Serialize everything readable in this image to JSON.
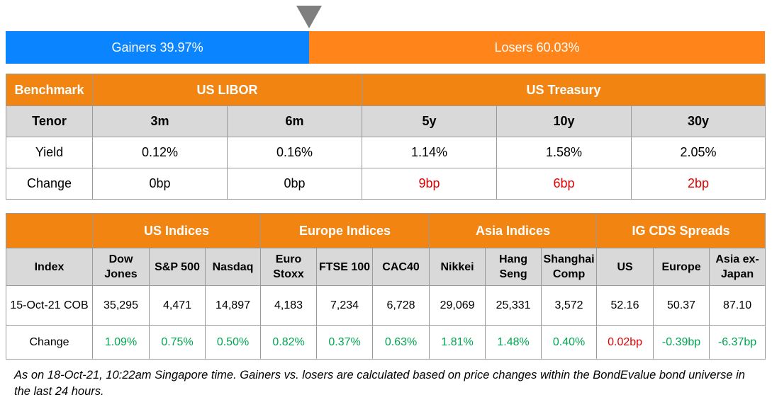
{
  "market_breadth": {
    "gainers_label": "Gainers 39.97%",
    "losers_label": "Losers 60.03%",
    "gainers_pct": 39.97,
    "losers_pct": 60.03,
    "gainers_color": "#0a84ff",
    "losers_color": "#ff8419",
    "pointer_icon": "triangle-down-icon"
  },
  "rates": {
    "benchmark_label": "Benchmark",
    "libor_label": "US LIBOR",
    "treasury_label": "US Treasury",
    "tenor_label": "Tenor",
    "yield_label": "Yield",
    "change_label": "Change",
    "tenors": [
      "3m",
      "6m",
      "5y",
      "10y",
      "30y"
    ],
    "yields": [
      "0.12%",
      "0.16%",
      "1.14%",
      "1.58%",
      "2.05%"
    ],
    "changes": [
      "0bp",
      "0bp",
      "9bp",
      "6bp",
      "2bp"
    ]
  },
  "indices": {
    "index_label": "Index",
    "groups": [
      "US Indices",
      "Europe Indices",
      "Asia Indices",
      "IG CDS Spreads"
    ],
    "names": [
      [
        "Dow",
        "Jones"
      ],
      [
        "S&P 500"
      ],
      [
        "Nasdaq"
      ],
      [
        "Euro",
        "Stoxx"
      ],
      [
        "FTSE 100"
      ],
      [
        "CAC40"
      ],
      [
        "Nikkei"
      ],
      [
        "Hang",
        "Seng"
      ],
      [
        "Shanghai",
        "Comp"
      ],
      [
        "US"
      ],
      [
        "Europe"
      ],
      [
        "Asia ex-",
        "Japan"
      ]
    ],
    "cob_label": "15-Oct-21 COB",
    "values": [
      "35,295",
      "4,471",
      "14,897",
      "4,183",
      "7,234",
      "6,728",
      "29,069",
      "25,331",
      "3,572",
      "52.16",
      "50.37",
      "87.10"
    ],
    "change_label": "Change",
    "changes": [
      "1.09%",
      "0.75%",
      "0.50%",
      "0.82%",
      "0.37%",
      "0.63%",
      "1.81%",
      "1.48%",
      "0.40%",
      "0.02bp",
      "-0.39bp",
      "-6.37bp"
    ]
  },
  "colors": {
    "header_orange": "#f28512",
    "subheader_grey": "#d9d9d9",
    "positive_green": "#00a651",
    "negative_red": "#e00000"
  },
  "footnote": "As on 18-Oct-21, 10:22am Singapore time. Gainers vs. losers are calculated based on price changes within the BondEvalue bond universe in the last 24 hours."
}
